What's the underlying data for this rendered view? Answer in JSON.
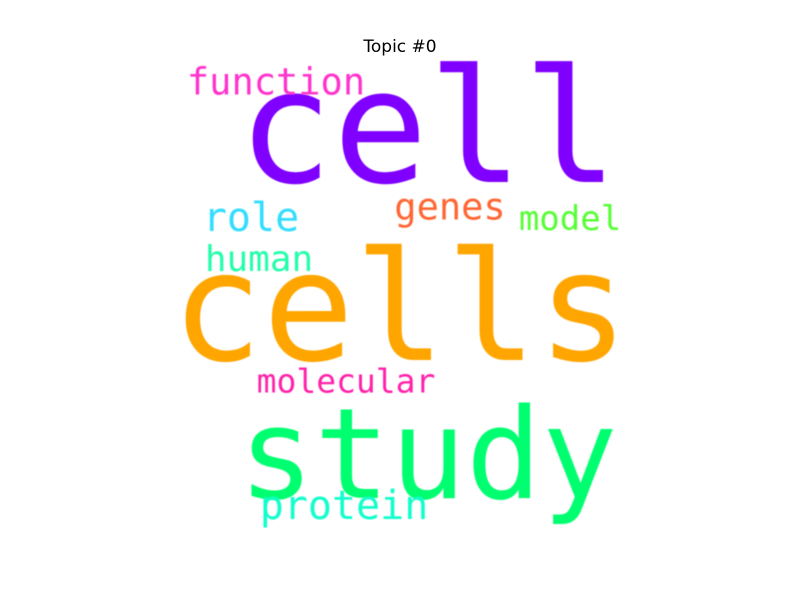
{
  "title": "Topic #0",
  "words": [
    {
      "text": "cell",
      "color": "#8000ff"
    },
    {
      "text": "cells",
      "color": "#ffa500"
    },
    {
      "text": "study",
      "color": "#00ff70"
    },
    {
      "text": "function",
      "color": "#ff33cc"
    },
    {
      "text": "role",
      "color": "#33ddff"
    },
    {
      "text": "genes",
      "color": "#ff6633"
    },
    {
      "text": "model",
      "color": "#55ff33"
    },
    {
      "text": "human",
      "color": "#22ffaa"
    },
    {
      "text": "molecular",
      "color": "#ff22aa"
    },
    {
      "text": "protein",
      "color": "#11ffcc"
    }
  ]
}
